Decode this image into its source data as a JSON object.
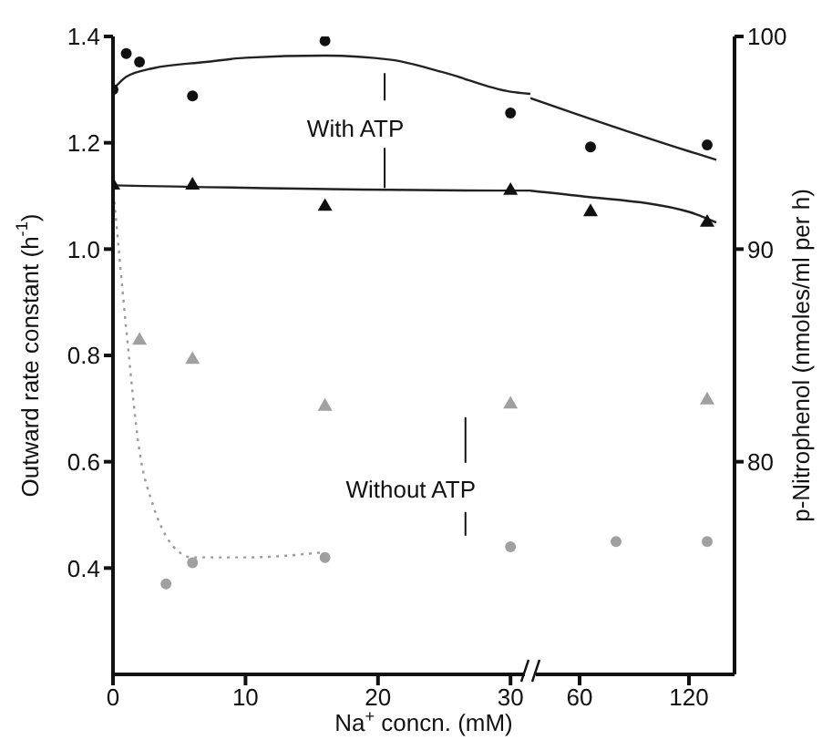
{
  "chart_data": [
    {
      "type": "scatter",
      "xlabel": "Na$^{+}$ concn. (mM)",
      "ylabel": "Outward rate constant (h$^{-1}$)",
      "annotations": [
        {
          "text": "With ATP",
          "x": 20.5,
          "y": 1.115
        },
        "Without ATP"
      ],
      "xlim": [
        0,
        31.5
      ],
      "xticks": [
        0,
        10,
        20,
        30
      ],
      "ylim": [
        0.2,
        1.4
      ],
      "yticks": [
        0.4,
        0.6,
        0.8,
        {
          "value": 1,
          "label": "1.0"
        },
        1.2,
        1.4
      ],
      "y2lim": [
        70,
        100
      ],
      "series": [
        {
          "type": "scatter",
          "marker": "circle",
          "axis": "y2",
          "color": "#111111",
          "x": [
            0,
            1,
            2,
            6,
            16,
            30
          ],
          "values": [
            97.5,
            99.2,
            98.8,
            97.2,
            99.8,
            96.4
          ]
        },
        {
          "type": "line",
          "marker": "none",
          "axis": "y2",
          "color": "#222222",
          "x": [
            0,
            1,
            3,
            7,
            10,
            16,
            21,
            25,
            30,
            31.5
          ],
          "values": [
            97.5,
            98.1,
            98.5,
            98.8,
            99.0,
            99.1,
            98.9,
            98.3,
            97.4,
            97.3
          ]
        },
        {
          "type": "scatter",
          "marker": "triangle",
          "axis": "y",
          "color": "#111111",
          "x": [
            0,
            6,
            16,
            30
          ],
          "values": [
            1.12,
            1.12,
            1.08,
            1.11
          ]
        },
        {
          "type": "line",
          "marker": "none",
          "axis": "y",
          "color": "#222222",
          "x": [
            0,
            30,
            31.5
          ],
          "values": [
            1.12,
            1.11,
            1.11
          ]
        },
        {
          "type": "line",
          "marker": "none",
          "line_style": "dotted",
          "axis": "y",
          "color": "#9a9a9a",
          "x": [
            0,
            1,
            2,
            3,
            4,
            5,
            6,
            10,
            16
          ],
          "values": [
            1.12,
            0.85,
            0.62,
            0.52,
            0.46,
            0.43,
            0.42,
            0.42,
            0.43
          ]
        },
        {
          "type": "scatter",
          "marker": "circle",
          "axis": "y",
          "color": "#a0a0a0",
          "x": [
            4,
            6,
            16,
            30
          ],
          "values": [
            0.37,
            0.41,
            0.42,
            0.44
          ]
        },
        {
          "type": "scatter",
          "marker": "triangle",
          "axis": "y2",
          "color": "#a0a0a0",
          "x": [
            2,
            6,
            16,
            30
          ],
          "values": [
            85.7,
            84.8,
            82.6,
            82.7
          ]
        }
      ]
    },
    {
      "type": "scatter",
      "y2label": "p-Nitrophenol (nmoles/ml per h)",
      "xlim": [
        33,
        145
      ],
      "xticks": [
        60,
        120
      ],
      "ylim": [
        0.2,
        1.4
      ],
      "y2lim": [
        70,
        100
      ],
      "y2ticks": [
        80,
        90,
        100
      ],
      "series": [
        {
          "type": "scatter",
          "marker": "circle",
          "axis": "y2",
          "color": "#111111",
          "x": [
            66,
            130
          ],
          "values": [
            94.8,
            94.9
          ]
        },
        {
          "type": "line",
          "marker": "none",
          "axis": "y2",
          "color": "#222222",
          "x": [
            33,
            60,
            120,
            135
          ],
          "values": [
            97.1,
            96.3,
            94.6,
            94.2
          ]
        },
        {
          "type": "scatter",
          "marker": "triangle",
          "axis": "y",
          "color": "#111111",
          "x": [
            66,
            130
          ],
          "values": [
            1.07,
            1.05
          ]
        },
        {
          "type": "line",
          "marker": "none",
          "axis": "y",
          "color": "#222222",
          "x": [
            33,
            60,
            120,
            135
          ],
          "values": [
            1.11,
            1.1,
            1.07,
            1.05
          ]
        },
        {
          "type": "scatter",
          "marker": "circle",
          "axis": "y",
          "color": "#a0a0a0",
          "x": [
            80,
            130
          ],
          "values": [
            0.45,
            0.45
          ]
        },
        {
          "type": "scatter",
          "marker": "triangle",
          "axis": "y2",
          "color": "#a0a0a0",
          "x": [
            130
          ],
          "values": [
            82.9
          ]
        }
      ]
    }
  ]
}
